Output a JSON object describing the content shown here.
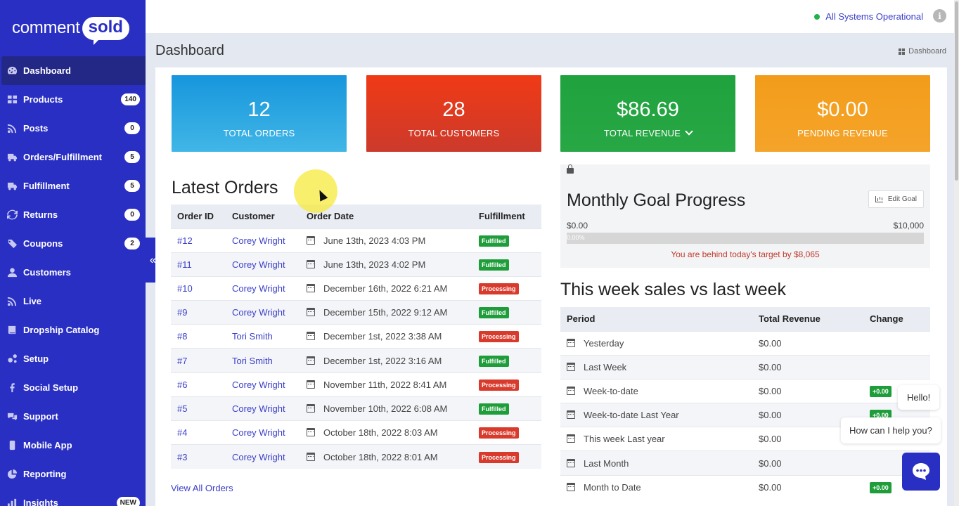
{
  "brand": {
    "logo_left": "comment",
    "logo_right": "sold"
  },
  "sidebar": {
    "items": [
      {
        "label": "Dashboard",
        "badge": "",
        "icon": "dashboard-icon"
      },
      {
        "label": "Products",
        "badge": "140",
        "icon": "grid-icon"
      },
      {
        "label": "Posts",
        "badge": "0",
        "icon": "rss-icon"
      },
      {
        "label": "Orders/Fulfillment",
        "badge": "5",
        "icon": "truck-icon"
      },
      {
        "label": "Fulfillment",
        "badge": "5",
        "icon": "truck-icon"
      },
      {
        "label": "Returns",
        "badge": "0",
        "icon": "refresh-icon"
      },
      {
        "label": "Coupons",
        "badge": "2",
        "icon": "tag-icon"
      },
      {
        "label": "Customers",
        "badge": "",
        "icon": "user-icon"
      },
      {
        "label": "Live",
        "badge": "",
        "icon": "rss-icon"
      },
      {
        "label": "Dropship Catalog",
        "badge": "",
        "icon": "book-icon"
      },
      {
        "label": "Setup",
        "badge": "",
        "icon": "cogs-icon"
      },
      {
        "label": "Social Setup",
        "badge": "",
        "icon": "facebook-icon"
      },
      {
        "label": "Support",
        "badge": "",
        "icon": "chat-icon"
      },
      {
        "label": "Mobile App",
        "badge": "",
        "icon": "mobile-icon"
      },
      {
        "label": "Reporting",
        "badge": "",
        "icon": "pie-chart-icon"
      },
      {
        "label": "Insights",
        "badge": "NEW",
        "icon": "bar-chart-icon"
      }
    ],
    "collapse_glyph": "«"
  },
  "topbar": {
    "status": "All Systems Operational",
    "info": "i"
  },
  "page": {
    "title": "Dashboard",
    "breadcrumb": "Dashboard"
  },
  "stats": [
    {
      "value": "12",
      "label": "TOTAL ORDERS"
    },
    {
      "value": "28",
      "label": "TOTAL CUSTOMERS"
    },
    {
      "value": "$86.69",
      "label": "TOTAL REVENUE"
    },
    {
      "value": "$0.00",
      "label": "PENDING REVENUE"
    }
  ],
  "latest_orders": {
    "title": "Latest Orders",
    "headers": [
      "Order ID",
      "Customer",
      "Order Date",
      "Fulfillment"
    ],
    "rows": [
      {
        "id": "#12",
        "customer": "Corey Wright",
        "date": "June 13th, 2023 4:03 PM",
        "status": "Fulfilled"
      },
      {
        "id": "#11",
        "customer": "Corey Wright",
        "date": "June 13th, 2023 4:02 PM",
        "status": "Fulfilled"
      },
      {
        "id": "#10",
        "customer": "Corey Wright",
        "date": "December 16th, 2022 6:21 AM",
        "status": "Processing"
      },
      {
        "id": "#9",
        "customer": "Corey Wright",
        "date": "December 15th, 2022 9:12 AM",
        "status": "Fulfilled"
      },
      {
        "id": "#8",
        "customer": "Tori Smith",
        "date": "December 1st, 2022 3:38 AM",
        "status": "Processing"
      },
      {
        "id": "#7",
        "customer": "Tori Smith",
        "date": "December 1st, 2022 3:16 AM",
        "status": "Fulfilled"
      },
      {
        "id": "#6",
        "customer": "Corey Wright",
        "date": "November 11th, 2022 8:41 AM",
        "status": "Processing"
      },
      {
        "id": "#5",
        "customer": "Corey Wright",
        "date": "November 10th, 2022 6:08 AM",
        "status": "Fulfilled"
      },
      {
        "id": "#4",
        "customer": "Corey Wright",
        "date": "October 18th, 2022 8:03 AM",
        "status": "Processing"
      },
      {
        "id": "#3",
        "customer": "Corey Wright",
        "date": "October 18th, 2022 8:01 AM",
        "status": "Processing"
      }
    ],
    "view_all": "View All Orders"
  },
  "goal": {
    "title": "Monthly Goal Progress",
    "edit_label": "Edit Goal",
    "min": "$0.00",
    "max": "$10,000",
    "progress_text": "0.00%",
    "progress_fraction": 0,
    "message": "You are behind today's target by $8,065"
  },
  "week": {
    "title": "This week sales vs last week",
    "headers": [
      "Period",
      "Total Revenue",
      "Change"
    ],
    "rows": [
      {
        "period": "Yesterday",
        "revenue": "$0.00",
        "change": ""
      },
      {
        "period": "Last Week",
        "revenue": "$0.00",
        "change": ""
      },
      {
        "period": "Week-to-date",
        "revenue": "$0.00",
        "change": "+0.00"
      },
      {
        "period": "Week-to-date Last Year",
        "revenue": "$0.00",
        "change": "+0.00"
      },
      {
        "period": "This week Last year",
        "revenue": "$0.00",
        "change": ""
      },
      {
        "period": "Last Month",
        "revenue": "$0.00",
        "change": ""
      },
      {
        "period": "Month to Date",
        "revenue": "$0.00",
        "change": "+0.00"
      }
    ]
  },
  "chat": {
    "hello": "Hello!",
    "help": "How can I help you?"
  },
  "colors": {
    "sidebar": "#2a2fc4",
    "active": "#232887",
    "fulfilled": "#1f9d3b",
    "processing": "#d83a2c",
    "link": "#3a3fc7"
  }
}
